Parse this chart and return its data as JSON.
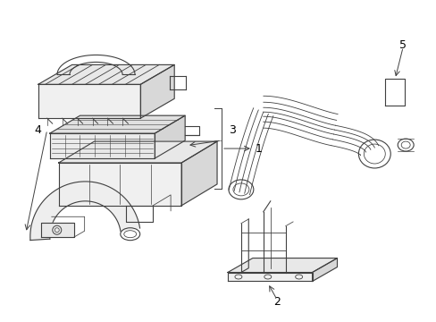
{
  "background_color": "#ffffff",
  "line_color": "#404040",
  "fig_width": 4.89,
  "fig_height": 3.6,
  "dpi": 100,
  "label1": "1",
  "label2": "2",
  "label3": "3",
  "label4": "4",
  "label5": "5",
  "label_fontsize": 9
}
